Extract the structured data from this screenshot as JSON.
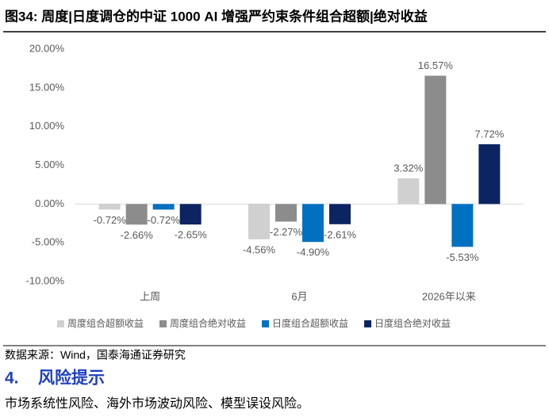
{
  "figure_title": "图34:  周度|日度调仓的中证 1000 AI 增强严约束条件组合超额|绝对收益",
  "chart_data": {
    "type": "bar",
    "categories": [
      "上周",
      "6月",
      "2026年以来"
    ],
    "series": [
      {
        "name": "周度组合超额收益",
        "color": "#d0d0d0",
        "values": [
          -0.72,
          -4.56,
          3.32
        ],
        "value_labels": [
          "-0.72%",
          "-4.56%",
          "3.32%"
        ]
      },
      {
        "name": "周度组合绝对收益",
        "color": "#8c8c8c",
        "values": [
          -2.66,
          -2.27,
          16.57
        ],
        "value_labels": [
          "-2.66%",
          "-2.27%",
          "16.57%"
        ]
      },
      {
        "name": "日度组合超额收益",
        "color": "#0070c0",
        "values": [
          -0.72,
          -4.9,
          -5.53
        ],
        "value_labels": [
          "-0.72%",
          "-4.90%",
          "-5.53%"
        ]
      },
      {
        "name": "日度组合绝对收益",
        "color": "#0c2461",
        "values": [
          -2.65,
          -2.61,
          7.72
        ],
        "value_labels": [
          "-2.65%",
          "-2.61%",
          "7.72%"
        ]
      }
    ],
    "ylim": [
      -10,
      20
    ],
    "yticks": [
      {
        "value": -10,
        "label": "-10.00%"
      },
      {
        "value": -5,
        "label": "-5.00%"
      },
      {
        "value": 0,
        "label": "0.00%"
      },
      {
        "value": 5,
        "label": "5.00%"
      },
      {
        "value": 10,
        "label": "10.00%"
      },
      {
        "value": 15,
        "label": "15.00%"
      },
      {
        "value": 20,
        "label": "20.00%"
      }
    ],
    "grid": false,
    "legend": "bottom"
  },
  "source": "数据来源：Wind，国泰海通证券研究",
  "section": {
    "number": "4.",
    "title": "风险提示"
  },
  "body": "市场系统性风险、海外市场波动风险、模型误设风险。"
}
